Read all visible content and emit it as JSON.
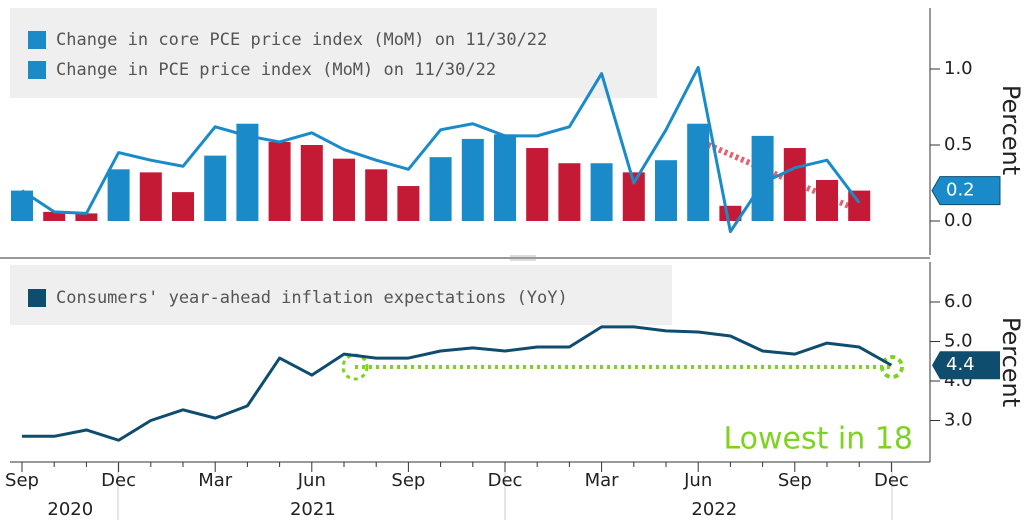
{
  "chart_data": [
    {
      "type": "bar",
      "ylabel": "Percent",
      "ylim": [
        -0.2,
        1.4
      ],
      "yticks": [
        {
          "value": 0,
          "label": "0.0"
        },
        {
          "value": 0.5,
          "label": "0.5"
        },
        {
          "value": 1,
          "label": "1.0"
        }
      ],
      "value_tag": {
        "value": 0.2,
        "label": "0.2"
      },
      "series": [
        {
          "name": "Change in core PCE price index (MoM) on 11/30/22",
          "type": "bar",
          "color": "#1a8bc8",
          "values": [
            0.2,
            0.06,
            0.05,
            0.34,
            0.32,
            0.19,
            0.43,
            0.64,
            0.52,
            0.5,
            0.41,
            0.34,
            0.23,
            0.42,
            0.54,
            0.57,
            0.48,
            0.38,
            0.38,
            0.32,
            0.4,
            0.64,
            0.1,
            0.56,
            0.48,
            0.27,
            0.2
          ],
          "bar_colors": [
            "#1a8bc8",
            "#c41a35",
            "#c41a35",
            "#1a8bc8",
            "#c41a35",
            "#c41a35",
            "#1a8bc8",
            "#1a8bc8",
            "#c41a35",
            "#c41a35",
            "#c41a35",
            "#c41a35",
            "#c41a35",
            "#1a8bc8",
            "#1a8bc8",
            "#1a8bc8",
            "#c41a35",
            "#c41a35",
            "#1a8bc8",
            "#c41a35",
            "#1a8bc8",
            "#1a8bc8",
            "#c41a35",
            "#1a8bc8",
            "#c41a35",
            "#c41a35",
            "#c41a35"
          ]
        },
        {
          "name": "Change in PCE price index (MoM) on 11/30/22",
          "type": "line",
          "color": "#1a8bc8",
          "values": [
            0.2,
            0.06,
            0.05,
            0.45,
            0.4,
            0.36,
            0.62,
            0.56,
            0.52,
            0.58,
            0.47,
            0.4,
            0.34,
            0.6,
            0.64,
            0.56,
            0.56,
            0.62,
            0.97,
            0.25,
            0.6,
            1.01,
            -0.07,
            0.25,
            0.35,
            0.4,
            0.12
          ]
        }
      ]
    },
    {
      "type": "line",
      "ylabel": "Percent",
      "ylim": [
        2,
        7
      ],
      "yticks": [
        {
          "value": 3,
          "label": "3.0"
        },
        {
          "value": 4,
          "label": "4.0"
        },
        {
          "value": 5,
          "label": "5.0"
        },
        {
          "value": 6,
          "label": "6.0"
        }
      ],
      "value_tag": {
        "value": 4.4,
        "label": "4.4"
      },
      "annotation": "Lowest in 18",
      "categories": [
        "Sep",
        null,
        null,
        "Dec",
        null,
        null,
        "Mar",
        null,
        null,
        "Jun",
        null,
        null,
        "Sep",
        null,
        null,
        "Dec",
        null,
        null,
        "Mar",
        null,
        null,
        "Jun",
        null,
        null,
        "Sep",
        null,
        null,
        "Dec"
      ],
      "years": [
        "2020",
        "2021",
        "2022"
      ],
      "series": [
        {
          "name": "Consumers' year-ahead inflation expectations (YoY)",
          "color": "#0f4d6e",
          "values": [
            2.6,
            2.6,
            2.76,
            2.5,
            3.0,
            3.27,
            3.06,
            3.37,
            4.58,
            4.15,
            4.68,
            4.58,
            4.58,
            4.76,
            4.84,
            4.76,
            4.86,
            4.86,
            5.37,
            5.37,
            5.27,
            5.24,
            5.14,
            4.76,
            4.68,
            4.96,
            4.86,
            4.4
          ]
        }
      ]
    }
  ]
}
